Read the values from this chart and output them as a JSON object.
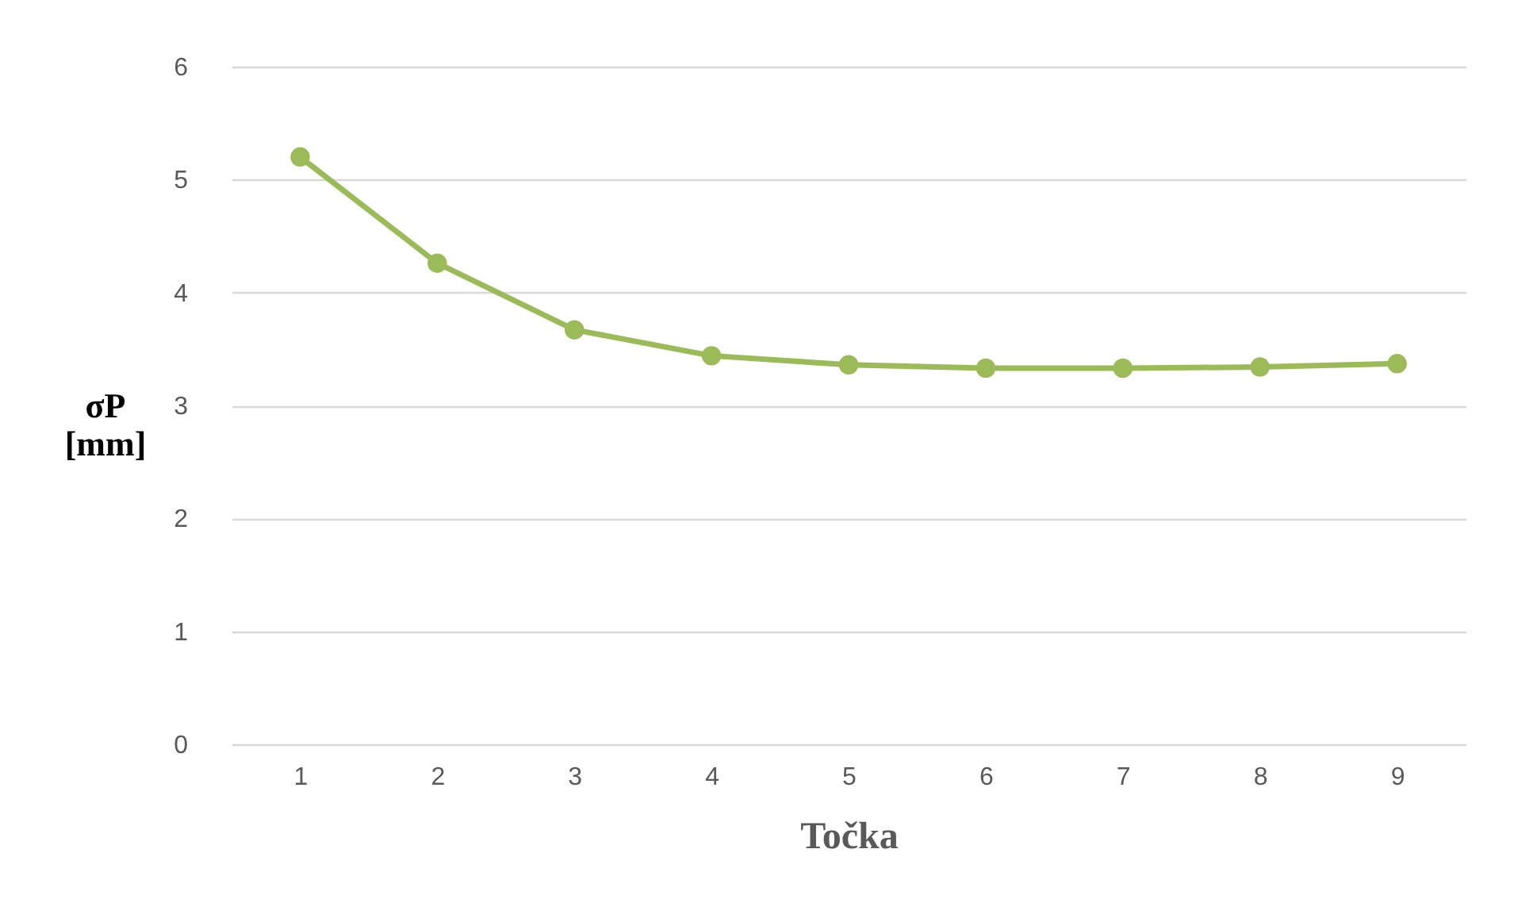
{
  "chart_data": {
    "type": "line",
    "xlabel": "Točka",
    "ylabel": "σP [mm]",
    "categories": [
      "1",
      "2",
      "3",
      "4",
      "5",
      "6",
      "7",
      "8",
      "9"
    ],
    "series": [
      {
        "color": "#9bbb59",
        "values": [
          5.2,
          4.26,
          3.67,
          3.44,
          3.36,
          3.33,
          3.33,
          3.34,
          3.37
        ]
      }
    ],
    "ylim": [
      0,
      6
    ],
    "yticks": [
      0,
      1,
      2,
      3,
      4,
      5,
      6
    ],
    "grid": "y",
    "marker": "circle",
    "line_style": "solid",
    "legend": false
  }
}
